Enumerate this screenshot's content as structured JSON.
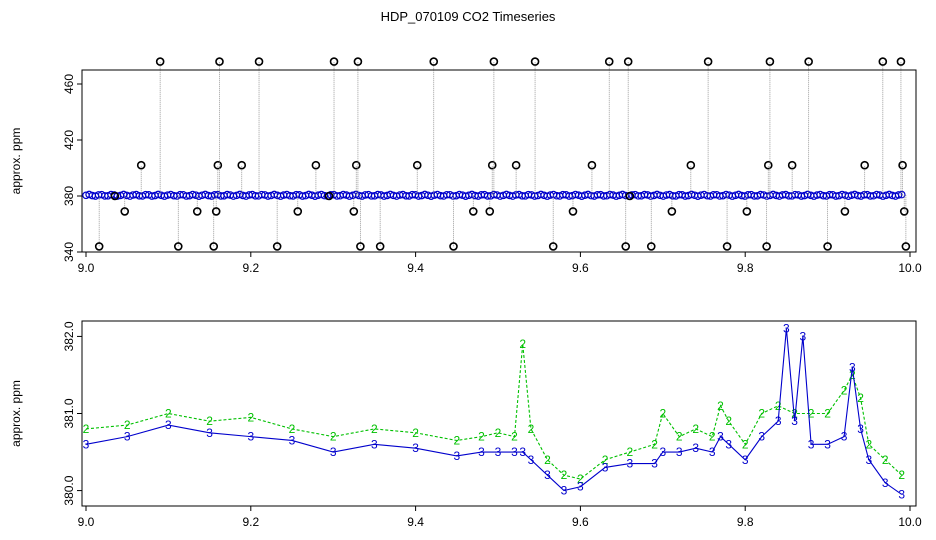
{
  "title": "HDP_070109  CO2 Timeseries",
  "colors": {
    "series1": "#000000",
    "series2": "#00c000",
    "series3": "#0000cc",
    "accent": "#00cccc",
    "line": "#888888"
  },
  "chart_data": [
    {
      "type": "scatter",
      "title": "HDP_070109  CO2 Timeseries",
      "xlabel": "",
      "ylabel": "approx. ppm",
      "xlim": [
        9.0,
        10.0
      ],
      "ylim": [
        340,
        470
      ],
      "xticks": [
        "9.0",
        "9.2",
        "9.4",
        "9.6",
        "9.8",
        "10.0"
      ],
      "yticks": [
        "340",
        "380",
        "420",
        "460"
      ],
      "grid": false,
      "baseline": 380.5,
      "series": [
        {
          "marker": "circle",
          "color": "#000000",
          "x": [
            9.016,
            9.035,
            9.047,
            9.067,
            9.09,
            9.112,
            9.135,
            9.155,
            9.158,
            9.16,
            9.162,
            9.189,
            9.21,
            9.232,
            9.257,
            9.279,
            9.295,
            9.301,
            9.325,
            9.328,
            9.33,
            9.333,
            9.357,
            9.402,
            9.422,
            9.446,
            9.47,
            9.49,
            9.493,
            9.495,
            9.522,
            9.545,
            9.567,
            9.591,
            9.614,
            9.635,
            9.655,
            9.658,
            9.66,
            9.686,
            9.711,
            9.734,
            9.755,
            9.778,
            9.802,
            9.826,
            9.828,
            9.83,
            9.857,
            9.877,
            9.9,
            9.921,
            9.945,
            9.967,
            9.989,
            9.991,
            9.993,
            9.995
          ],
          "y": [
            344,
            380,
            369,
            402,
            476,
            344,
            369,
            344,
            369,
            402,
            476,
            402,
            476,
            344,
            369,
            402,
            380,
            476,
            369,
            402,
            476,
            344,
            344,
            402,
            476,
            344,
            369,
            369,
            402,
            476,
            402,
            476,
            344,
            369,
            402,
            476,
            344,
            476,
            380,
            344,
            369,
            402,
            476,
            344,
            369,
            344,
            402,
            476,
            402,
            476,
            344,
            369,
            402,
            476,
            476,
            402,
            369,
            344
          ]
        }
      ]
    },
    {
      "type": "line",
      "title": "",
      "xlabel": "",
      "ylabel": "approx. ppm",
      "xlim": [
        9.0,
        10.0
      ],
      "ylim": [
        379.8,
        382.2
      ],
      "xticks": [
        "9.0",
        "9.2",
        "9.4",
        "9.6",
        "9.8",
        "10.0"
      ],
      "yticks": [
        "380.0",
        "381.0",
        "382.0"
      ],
      "grid": false,
      "series": [
        {
          "marker": "2",
          "color": "#00c000",
          "x": [
            9.0,
            9.05,
            9.1,
            9.15,
            9.2,
            9.25,
            9.3,
            9.35,
            9.4,
            9.45,
            9.48,
            9.5,
            9.52,
            9.53,
            9.54,
            9.56,
            9.58,
            9.6,
            9.63,
            9.66,
            9.69,
            9.7,
            9.72,
            9.74,
            9.76,
            9.77,
            9.78,
            9.8,
            9.82,
            9.84,
            9.86,
            9.88,
            9.9,
            9.92,
            9.93,
            9.94,
            9.95,
            9.97,
            9.99
          ],
          "y": [
            380.8,
            380.85,
            381.0,
            380.9,
            380.95,
            380.8,
            380.7,
            380.8,
            380.75,
            380.65,
            380.7,
            380.75,
            380.7,
            381.9,
            380.8,
            380.4,
            380.2,
            380.15,
            380.4,
            380.5,
            380.6,
            381.0,
            380.7,
            380.8,
            380.7,
            381.1,
            380.9,
            380.6,
            381.0,
            381.1,
            381.0,
            381.0,
            381.0,
            381.3,
            381.5,
            381.2,
            380.6,
            380.4,
            380.2
          ]
        },
        {
          "marker": "3",
          "color": "#0000cc",
          "x": [
            9.0,
            9.05,
            9.1,
            9.15,
            9.2,
            9.25,
            9.3,
            9.35,
            9.4,
            9.45,
            9.48,
            9.5,
            9.52,
            9.53,
            9.54,
            9.56,
            9.58,
            9.6,
            9.63,
            9.66,
            9.69,
            9.7,
            9.72,
            9.74,
            9.76,
            9.77,
            9.78,
            9.8,
            9.82,
            9.84,
            9.85,
            9.86,
            9.87,
            9.88,
            9.9,
            9.92,
            9.93,
            9.94,
            9.95,
            9.97,
            9.99
          ],
          "y": [
            380.6,
            380.7,
            380.85,
            380.75,
            380.7,
            380.65,
            380.5,
            380.6,
            380.55,
            380.45,
            380.5,
            380.5,
            380.5,
            380.5,
            380.4,
            380.2,
            380.0,
            380.05,
            380.3,
            380.35,
            380.35,
            380.5,
            380.5,
            380.55,
            380.5,
            380.7,
            380.6,
            380.4,
            380.7,
            380.9,
            382.1,
            380.9,
            382.0,
            380.6,
            380.6,
            380.7,
            381.6,
            380.8,
            380.4,
            380.1,
            379.95
          ]
        }
      ]
    }
  ]
}
